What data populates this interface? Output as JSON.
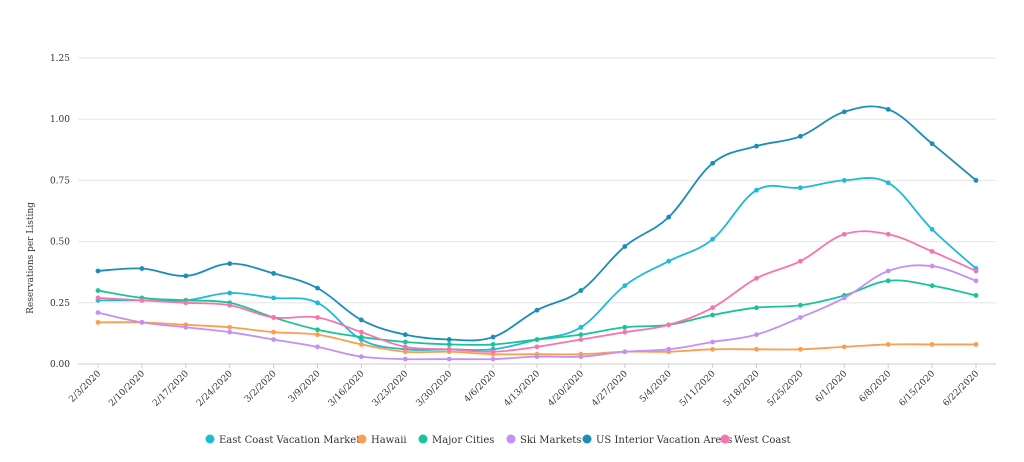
{
  "chart_data": {
    "type": "line",
    "title": "",
    "xlabel": "",
    "ylabel": "Reservations per Listing",
    "ylim": [
      0,
      1.25
    ],
    "yticks": [
      "0.00",
      "0.25",
      "0.50",
      "0.75",
      "1.00",
      "1.25"
    ],
    "ytick_values": [
      0,
      0.25,
      0.5,
      0.75,
      1.0,
      1.25
    ],
    "x": [
      "2/3/2020",
      "2/10/2020",
      "2/17/2020",
      "2/24/2020",
      "3/2/2020",
      "3/9/2020",
      "3/16/2020",
      "3/23/2020",
      "3/30/2020",
      "4/6/2020",
      "4/13/2020",
      "4/20/2020",
      "4/27/2020",
      "5/4/2020",
      "5/11/2020",
      "5/18/2020",
      "5/25/2020",
      "6/1/2020",
      "6/8/2020",
      "6/15/2020",
      "6/22/2020"
    ],
    "grid": true,
    "legend_position": "bottom",
    "series": [
      {
        "name": "East Coast Vacation Markets",
        "color": "#1fbad6",
        "values": [
          0.26,
          0.26,
          0.26,
          0.29,
          0.27,
          0.25,
          0.1,
          0.06,
          0.06,
          0.06,
          0.1,
          0.15,
          0.32,
          0.42,
          0.51,
          0.71,
          0.72,
          0.75,
          0.74,
          0.55,
          0.39
        ]
      },
      {
        "name": "Hawaii",
        "color": "#fc9e4f",
        "values": [
          0.17,
          0.17,
          0.16,
          0.15,
          0.13,
          0.12,
          0.08,
          0.05,
          0.05,
          0.04,
          0.04,
          0.04,
          0.05,
          0.05,
          0.06,
          0.06,
          0.06,
          0.07,
          0.08,
          0.08,
          0.08
        ]
      },
      {
        "name": "Major Cities",
        "color": "#1bc498",
        "values": [
          0.3,
          0.27,
          0.26,
          0.25,
          0.19,
          0.14,
          0.11,
          0.09,
          0.08,
          0.08,
          0.1,
          0.12,
          0.15,
          0.16,
          0.2,
          0.23,
          0.24,
          0.28,
          0.34,
          0.32,
          0.28
        ]
      },
      {
        "name": "Ski Markets",
        "color": "#c490f5",
        "values": [
          0.21,
          0.17,
          0.15,
          0.13,
          0.1,
          0.07,
          0.03,
          0.02,
          0.02,
          0.02,
          0.03,
          0.03,
          0.05,
          0.06,
          0.09,
          0.12,
          0.19,
          0.27,
          0.38,
          0.4,
          0.34
        ]
      },
      {
        "name": "US Interior Vacation Areas",
        "color": "#1b8db8",
        "values": [
          0.38,
          0.39,
          0.36,
          0.41,
          0.37,
          0.31,
          0.18,
          0.12,
          0.1,
          0.11,
          0.22,
          0.3,
          0.48,
          0.6,
          0.82,
          0.89,
          0.93,
          1.03,
          1.04,
          0.9,
          0.75
        ]
      },
      {
        "name": "West Coast",
        "color": "#f774ae",
        "values": [
          0.27,
          0.26,
          0.25,
          0.24,
          0.19,
          0.19,
          0.13,
          0.07,
          0.06,
          0.05,
          0.07,
          0.1,
          0.13,
          0.16,
          0.23,
          0.35,
          0.42,
          0.53,
          0.53,
          0.46,
          0.38
        ]
      }
    ]
  }
}
